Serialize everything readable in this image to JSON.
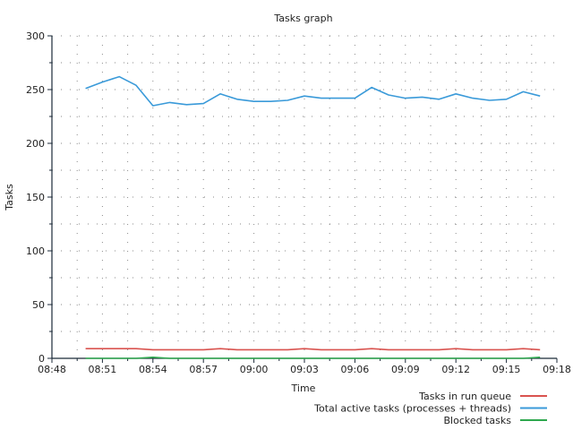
{
  "chart_data": {
    "type": "line",
    "title": "Tasks graph",
    "xlabel": "Time",
    "ylabel": "Tasks",
    "xlim": [
      "08:48",
      "09:18"
    ],
    "ylim": [
      0,
      300
    ],
    "x_ticks": [
      "08:48",
      "08:51",
      "08:54",
      "08:57",
      "09:00",
      "09:03",
      "09:06",
      "09:09",
      "09:12",
      "09:15",
      "09:18"
    ],
    "y_ticks": [
      "0",
      "50",
      "100",
      "150",
      "200",
      "250",
      "300"
    ],
    "grid": true,
    "legend_position": "bottom-right",
    "x": [
      "08:50",
      "08:51",
      "08:52",
      "08:53",
      "08:54",
      "08:55",
      "08:56",
      "08:57",
      "08:58",
      "08:59",
      "09:00",
      "09:01",
      "09:02",
      "09:03",
      "09:04",
      "09:05",
      "09:06",
      "09:07",
      "09:08",
      "09:09",
      "09:10",
      "09:11",
      "09:12",
      "09:13",
      "09:14",
      "09:15",
      "09:16",
      "09:17"
    ],
    "series": [
      {
        "name": "Tasks in run queue",
        "color": "#d9534f",
        "values": [
          9,
          9,
          9,
          9,
          8,
          8,
          8,
          8,
          9,
          8,
          8,
          8,
          8,
          9,
          8,
          8,
          8,
          9,
          8,
          8,
          8,
          8,
          9,
          8,
          8,
          8,
          9,
          8
        ]
      },
      {
        "name": "Total active tasks (processes + threads)",
        "color": "#3a9ad9",
        "values": [
          251,
          257,
          262,
          254,
          235,
          238,
          236,
          237,
          246,
          241,
          239,
          239,
          240,
          244,
          242,
          242,
          242,
          252,
          245,
          242,
          243,
          241,
          246,
          242,
          240,
          241,
          248,
          244
        ]
      },
      {
        "name": "Blocked tasks",
        "color": "#2ea84f",
        "values": [
          0,
          0,
          0,
          0,
          1,
          0,
          0,
          0,
          0,
          0,
          0,
          0,
          0,
          0,
          0,
          0,
          0,
          0,
          0,
          0,
          0,
          0,
          0,
          0,
          0,
          0,
          0,
          1
        ]
      }
    ],
    "axis_color": "#1b2a38",
    "grid_color": "#8a8a8a"
  }
}
